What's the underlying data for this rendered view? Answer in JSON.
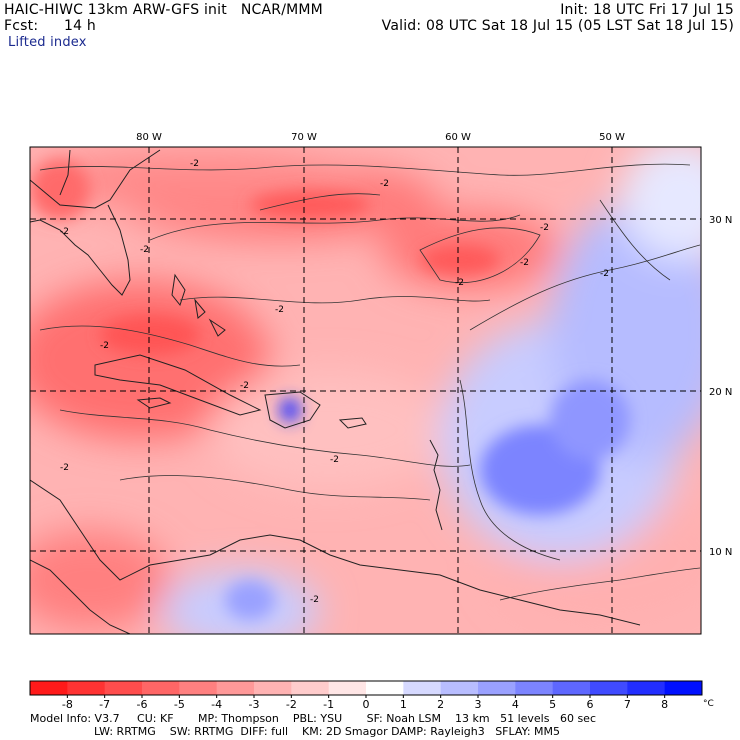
{
  "header": {
    "model_line": "HAIC-HIWC 13km ARW-GFS init   NCAR/MMM",
    "init_line": "Init: 18 UTC Fri 17 Jul 15",
    "fcst_label": "Fcst:",
    "fcst_value": "14 h",
    "valid_line": "Valid: 08 UTC Sat 18 Jul 15 (05 LST Sat 18 Jul 15)",
    "field_name": "Lifted index"
  },
  "map": {
    "lon_labels": [
      "80 W",
      "70 W",
      "60 W",
      "50 W"
    ],
    "lat_labels": [
      "30 N",
      "20 N",
      "10 N"
    ],
    "contour_labels": [
      "-2",
      "-2",
      "-2",
      "-2",
      "-2",
      "-2",
      "-2",
      "-2",
      "-2",
      "-2",
      "-2",
      "-2",
      "-2",
      "-2"
    ]
  },
  "colorbar": {
    "ticks": [
      "-8",
      "-7",
      "-6",
      "-5",
      "-4",
      "-3",
      "-2",
      "-1",
      "0",
      "1",
      "2",
      "3",
      "4",
      "5",
      "6",
      "7",
      "8"
    ],
    "unit": "°C",
    "colors": [
      "#ff1a1a",
      "#ff3333",
      "#ff4d4d",
      "#ff6666",
      "#ff8080",
      "#ff9999",
      "#ffb3b3",
      "#ffcccc",
      "#ffe6e6",
      "#ffffff",
      "#d6d9ff",
      "#b8bdff",
      "#9aa1ff",
      "#7c84ff",
      "#5e67ff",
      "#404bff",
      "#222eff",
      "#0010ff"
    ]
  },
  "model_info": {
    "line1": "Model Info: V3.7     CU: KF       MP: Thompson    PBL: YSU       SF: Noah LSM    13 km   51 levels   60 sec",
    "line2": "LW: RRTMG    SW: RRTMG  DIFF: full    KM: 2D Smagor DAMP: Rayleigh3   SFLAY: MM5"
  }
}
